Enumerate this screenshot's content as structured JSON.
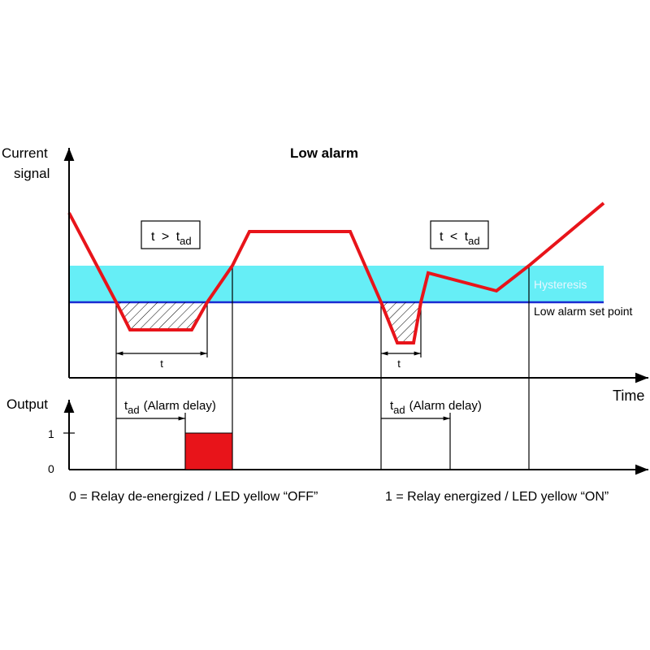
{
  "title": "Low alarm",
  "y_axis_label_lines": [
    "Current",
    "signal"
  ],
  "x_axis_label": "Time",
  "output_label": "Output",
  "output_ticks": [
    1,
    0
  ],
  "hysteresis_label": "Hysteresis",
  "set_point_label": "Low alarm set point",
  "conditions": [
    {
      "lhs": "t",
      "operator": ">",
      "rhs": "t",
      "rhs_subscript": "ad"
    },
    {
      "lhs": "t",
      "operator": "<",
      "rhs": "t",
      "rhs_subscript": "ad"
    }
  ],
  "duration_labels": [
    "t",
    "t"
  ],
  "delay_labels": [
    {
      "symbol": "t",
      "subscript": "ad",
      "text": "(Alarm delay)"
    },
    {
      "symbol": "t",
      "subscript": "ad",
      "text": "(Alarm delay)"
    }
  ],
  "legend": [
    "0 = Relay de-energized / LED yellow “OFF”",
    "1 = Relay energized / LED yellow “ON”"
  ]
}
